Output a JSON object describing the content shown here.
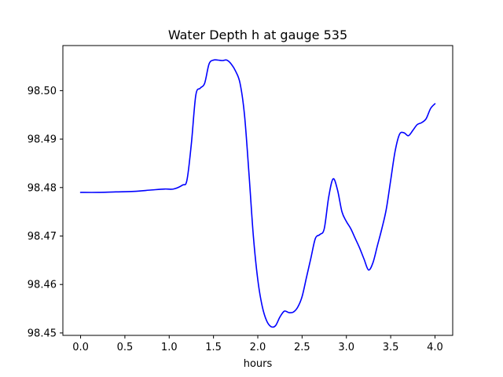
{
  "chart_data": {
    "type": "line",
    "title": "Water Depth h at gauge 535",
    "xlabel": "hours",
    "ylabel": "",
    "xlim": [
      -0.2,
      4.2
    ],
    "ylim": [
      98.4495,
      98.5093
    ],
    "grid": false,
    "x_ticks": [
      0.0,
      0.5,
      1.0,
      1.5,
      2.0,
      2.5,
      3.0,
      3.5,
      4.0
    ],
    "x_tick_labels": [
      "0.0",
      "0.5",
      "1.0",
      "1.5",
      "2.0",
      "2.5",
      "3.0",
      "3.5",
      "4.0"
    ],
    "y_ticks": [
      98.45,
      98.46,
      98.47,
      98.48,
      98.49,
      98.5
    ],
    "y_tick_labels": [
      "98.45",
      "98.46",
      "98.47",
      "98.48",
      "98.49",
      "98.50"
    ],
    "series": [
      {
        "color": "#0000ff",
        "x": [
          0.0,
          0.2,
          0.4,
          0.6,
          0.8,
          0.95,
          1.05,
          1.15,
          1.2,
          1.25,
          1.3,
          1.35,
          1.4,
          1.45,
          1.5,
          1.55,
          1.6,
          1.65,
          1.7,
          1.75,
          1.8,
          1.85,
          1.9,
          1.95,
          2.0,
          2.05,
          2.1,
          2.15,
          2.2,
          2.25,
          2.3,
          2.35,
          2.4,
          2.45,
          2.5,
          2.55,
          2.6,
          2.65,
          2.7,
          2.75,
          2.8,
          2.85,
          2.9,
          2.95,
          3.0,
          3.05,
          3.1,
          3.15,
          3.2,
          3.25,
          3.3,
          3.35,
          3.4,
          3.45,
          3.5,
          3.55,
          3.6,
          3.65,
          3.7,
          3.75,
          3.8,
          3.85,
          3.9,
          3.95,
          4.0
        ],
        "y": [
          98.479,
          98.479,
          98.4791,
          98.4792,
          98.4795,
          98.4797,
          98.4797,
          98.4805,
          98.4815,
          98.489,
          98.499,
          98.5005,
          98.5015,
          98.5055,
          98.5063,
          98.5063,
          98.5062,
          98.5063,
          98.5055,
          98.504,
          98.5015,
          98.495,
          98.483,
          98.47,
          98.461,
          98.4555,
          98.4525,
          98.4513,
          98.4515,
          98.4533,
          98.4545,
          98.4542,
          98.4543,
          98.4553,
          98.4575,
          98.4615,
          98.4655,
          98.4695,
          98.4703,
          98.4715,
          98.478,
          98.4818,
          98.4795,
          98.475,
          98.473,
          98.4715,
          98.4695,
          98.4675,
          98.4652,
          98.463,
          98.4645,
          98.468,
          98.4715,
          98.4755,
          98.4815,
          98.4875,
          98.491,
          98.4913,
          98.4907,
          98.4918,
          98.493,
          98.4934,
          98.4942,
          98.4963,
          98.4973
        ]
      }
    ]
  }
}
